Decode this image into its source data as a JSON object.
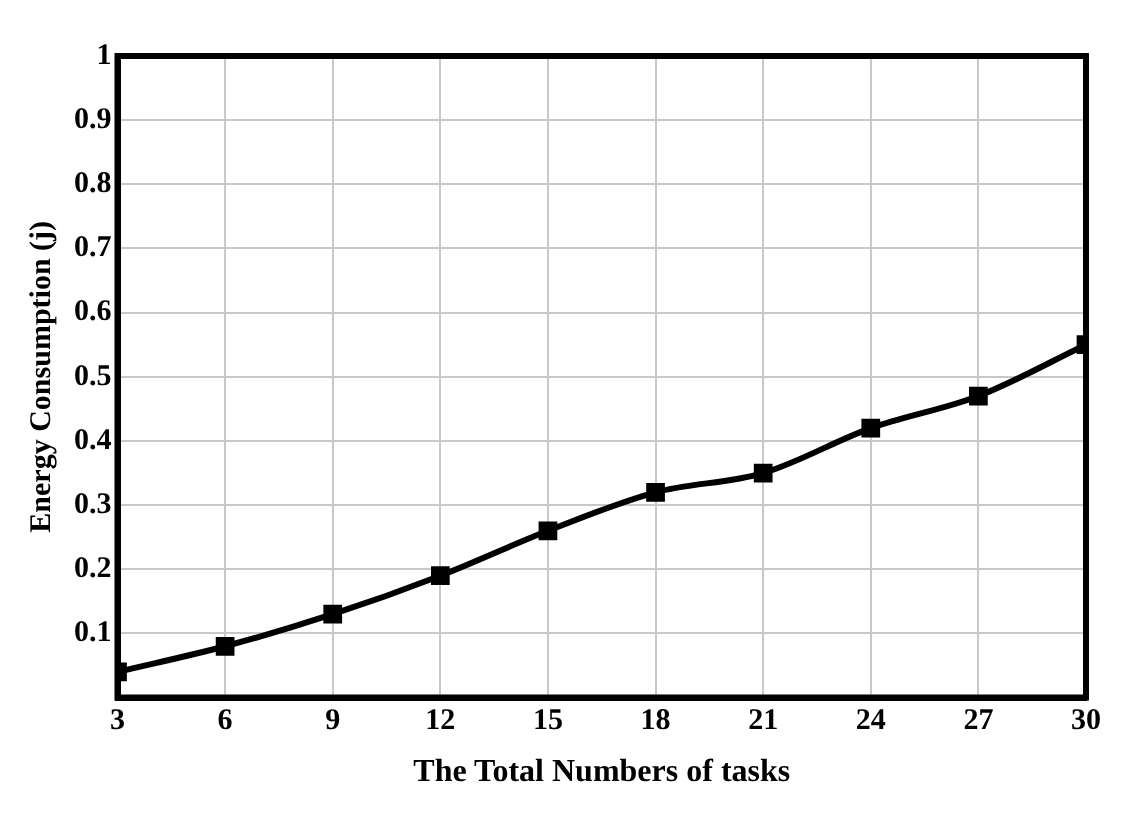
{
  "chart_data": {
    "type": "line",
    "xlabel": "The Total Numbers of tasks",
    "ylabel": "Energy Consumption (j)",
    "x": [
      3,
      6,
      9,
      12,
      15,
      18,
      21,
      24,
      27,
      30
    ],
    "series": [
      {
        "color": "#000000",
        "values": [
          0.04,
          0.08,
          0.13,
          0.19,
          0.26,
          0.32,
          0.35,
          0.42,
          0.47,
          0.55
        ]
      }
    ],
    "xlim": [
      3,
      30
    ],
    "xticks": [
      3,
      6,
      9,
      12,
      15,
      18,
      21,
      24,
      27,
      30
    ],
    "ylim": [
      0,
      1
    ],
    "yticks": [
      0.1,
      0.2,
      0.3,
      0.4,
      0.5,
      0.6,
      0.7,
      0.8,
      0.9,
      1
    ],
    "grid": true,
    "marker": "square",
    "line_style": "solid",
    "legend": false
  }
}
